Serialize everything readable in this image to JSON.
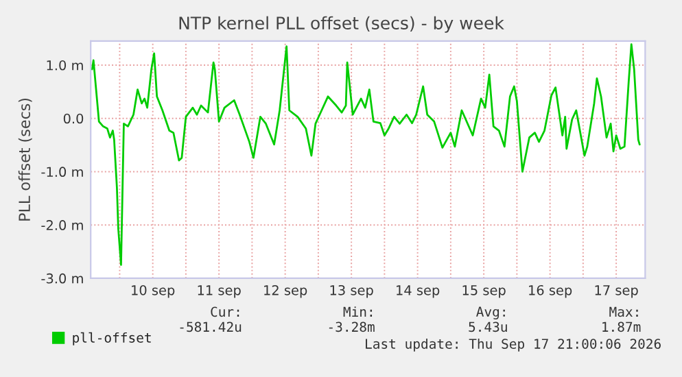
{
  "chart_data": {
    "type": "line",
    "title": "NTP kernel PLL offset (secs) - by week",
    "ylabel": "PLL offset (secs)",
    "x": [
      "2026-09-09T14:00",
      "2026-09-09T14:30",
      "2026-09-09T16:30",
      "2026-09-09T18:00",
      "2026-09-09T19:30",
      "2026-09-09T20:30",
      "2026-09-09T21:30",
      "2026-09-09T22:00",
      "2026-09-09T23:00",
      "2026-09-09T23:30",
      "2026-09-10T00:30",
      "2026-09-10T01:30",
      "2026-09-10T03:00",
      "2026-09-10T05:00",
      "2026-09-10T06:30",
      "2026-09-10T08:00",
      "2026-09-10T09:00",
      "2026-09-10T10:00",
      "2026-09-10T11:30",
      "2026-09-10T12:30",
      "2026-09-10T13:30",
      "2026-09-10T15:30",
      "2026-09-10T18:00",
      "2026-09-10T19:30",
      "2026-09-10T21:30",
      "2026-09-10T22:30",
      "2026-09-11T00:00",
      "2026-09-11T02:30",
      "2026-09-11T04:00",
      "2026-09-11T05:30",
      "2026-09-11T08:00",
      "2026-09-11T10:00",
      "2026-09-11T10:30",
      "2026-09-11T12:00",
      "2026-09-11T14:00",
      "2026-09-11T17:30",
      "2026-09-11T19:30",
      "2026-09-11T23:00",
      "2026-09-12T00:30",
      "2026-09-12T03:00",
      "2026-09-12T05:00",
      "2026-09-12T08:00",
      "2026-09-12T10:00",
      "2026-09-12T12:30",
      "2026-09-12T13:30",
      "2026-09-12T16:30",
      "2026-09-12T19:30",
      "2026-09-12T21:30",
      "2026-09-12T23:00",
      "2026-09-13T00:30",
      "2026-09-13T03:30",
      "2026-09-13T06:30",
      "2026-09-13T08:30",
      "2026-09-13T10:00",
      "2026-09-13T10:30",
      "2026-09-13T12:30",
      "2026-09-13T15:30",
      "2026-09-13T17:00",
      "2026-09-13T18:30",
      "2026-09-13T20:00",
      "2026-09-13T22:30",
      "2026-09-14T00:00",
      "2026-09-14T01:30",
      "2026-09-14T03:30",
      "2026-09-14T05:30",
      "2026-09-14T08:00",
      "2026-09-14T10:00",
      "2026-09-14T11:30",
      "2026-09-14T14:00",
      "2026-09-14T15:30",
      "2026-09-14T18:00",
      "2026-09-14T21:00",
      "2026-09-15T00:00",
      "2026-09-15T01:30",
      "2026-09-15T04:00",
      "2026-09-15T08:00",
      "2026-09-15T11:00",
      "2026-09-15T12:30",
      "2026-09-15T14:00",
      "2026-09-15T15:30",
      "2026-09-15T17:30",
      "2026-09-15T19:30",
      "2026-09-15T21:30",
      "2026-09-15T23:00",
      "2026-09-16T00:00",
      "2026-09-16T02:00",
      "2026-09-16T04:30",
      "2026-09-16T06:30",
      "2026-09-16T08:00",
      "2026-09-16T10:00",
      "2026-09-16T12:30",
      "2026-09-16T14:00",
      "2026-09-16T16:30",
      "2026-09-16T17:30",
      "2026-09-16T18:00",
      "2026-09-16T20:00",
      "2026-09-16T21:30",
      "2026-09-17T00:30",
      "2026-09-17T01:30",
      "2026-09-17T04:00",
      "2026-09-17T05:00",
      "2026-09-17T06:30",
      "2026-09-17T08:30",
      "2026-09-17T10:00",
      "2026-09-17T11:00",
      "2026-09-17T12:00",
      "2026-09-17T13:30",
      "2026-09-17T15:00",
      "2026-09-17T16:30",
      "2026-09-17T17:30",
      "2026-09-17T18:30",
      "2026-09-17T20:00",
      "2026-09-17T20:30"
    ],
    "series": [
      {
        "name": "pll-offset",
        "color": "#00cc00",
        "values": [
          0.92,
          1.09,
          -0.06,
          -0.15,
          -0.19,
          -0.36,
          -0.23,
          -0.4,
          -1.3,
          -2.07,
          -2.75,
          -0.1,
          -0.15,
          0.07,
          0.54,
          0.28,
          0.37,
          0.2,
          0.92,
          1.22,
          0.41,
          0.15,
          -0.23,
          -0.27,
          -0.79,
          -0.74,
          0.03,
          0.2,
          0.07,
          0.24,
          0.11,
          1.05,
          0.92,
          -0.06,
          0.2,
          0.34,
          0.07,
          -0.44,
          -0.74,
          0.03,
          -0.1,
          -0.49,
          0.15,
          1.35,
          0.15,
          0.03,
          -0.19,
          -0.7,
          -0.1,
          0.07,
          0.41,
          0.24,
          0.11,
          0.24,
          1.05,
          0.07,
          0.37,
          0.2,
          0.54,
          -0.06,
          -0.09,
          -0.32,
          -0.19,
          0.03,
          -0.1,
          0.07,
          -0.09,
          0.07,
          0.6,
          0.07,
          -0.06,
          -0.55,
          -0.27,
          -0.53,
          0.15,
          -0.32,
          0.37,
          0.2,
          0.82,
          -0.15,
          -0.23,
          -0.53,
          0.41,
          0.6,
          0.32,
          -1.0,
          -0.36,
          -0.27,
          -0.44,
          -0.23,
          0.43,
          0.58,
          -0.32,
          0.03,
          -0.57,
          -0.02,
          0.15,
          -0.7,
          -0.53,
          0.28,
          0.75,
          0.41,
          -0.36,
          -0.1,
          -0.62,
          -0.32,
          -0.57,
          -0.53,
          0.67,
          1.39,
          0.92,
          -0.4,
          -0.49
        ]
      }
    ],
    "xlim": [
      "2026-09-09T13:30",
      "2026-09-17T22:30"
    ],
    "xticks": [
      {
        "value": "2026-09-10T00:00",
        "label": null
      },
      {
        "value": "2026-09-10T12:00",
        "label": "10 sep"
      },
      {
        "value": "2026-09-11T00:00",
        "label": null
      },
      {
        "value": "2026-09-11T12:00",
        "label": "11 sep"
      },
      {
        "value": "2026-09-12T00:00",
        "label": null
      },
      {
        "value": "2026-09-12T12:00",
        "label": "12 sep"
      },
      {
        "value": "2026-09-13T00:00",
        "label": null
      },
      {
        "value": "2026-09-13T12:00",
        "label": "13 sep"
      },
      {
        "value": "2026-09-14T00:00",
        "label": null
      },
      {
        "value": "2026-09-14T12:00",
        "label": "14 sep"
      },
      {
        "value": "2026-09-15T00:00",
        "label": null
      },
      {
        "value": "2026-09-15T12:00",
        "label": "15 sep"
      },
      {
        "value": "2026-09-16T00:00",
        "label": null
      },
      {
        "value": "2026-09-16T12:00",
        "label": "16 sep"
      },
      {
        "value": "2026-09-17T00:00",
        "label": null
      },
      {
        "value": "2026-09-17T12:00",
        "label": "17 sep"
      }
    ],
    "ylim": [
      -3.0,
      1.45
    ],
    "yticks": [
      {
        "value": -3.0,
        "label": "-3.0 m"
      },
      {
        "value": -2.0,
        "label": "-2.0 m"
      },
      {
        "value": -1.0,
        "label": "-1.0 m"
      },
      {
        "value": 0.0,
        "label": "0.0"
      },
      {
        "value": 1.0,
        "label": "1.0 m"
      }
    ],
    "grid": true,
    "legend": "bottom left",
    "annotations": [
      "Cur:",
      "Min:",
      "Avg:",
      "Max:",
      "-581.42u",
      "-3.28m",
      "5.43u",
      "1.87m",
      "Last update: Thu Sep 17 21:00:06 2026"
    ]
  }
}
